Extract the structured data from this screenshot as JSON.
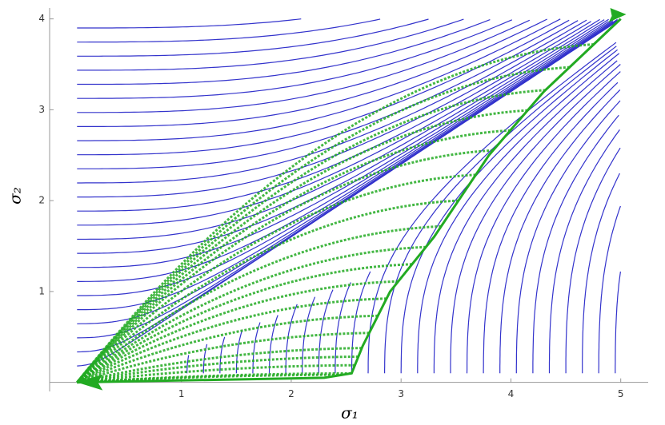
{
  "chart_data": {
    "type": "stream",
    "xlabel": "σ₁",
    "ylabel": "σ₂",
    "xlim": [
      -0.2,
      5.25
    ],
    "ylim": [
      -0.1,
      4.12
    ],
    "xticks": [
      1,
      2,
      3,
      4,
      5
    ],
    "yticks": [
      1,
      2,
      3,
      4
    ],
    "stream_color": "#3333cc",
    "separatrix_color": "#22aa22"
  }
}
